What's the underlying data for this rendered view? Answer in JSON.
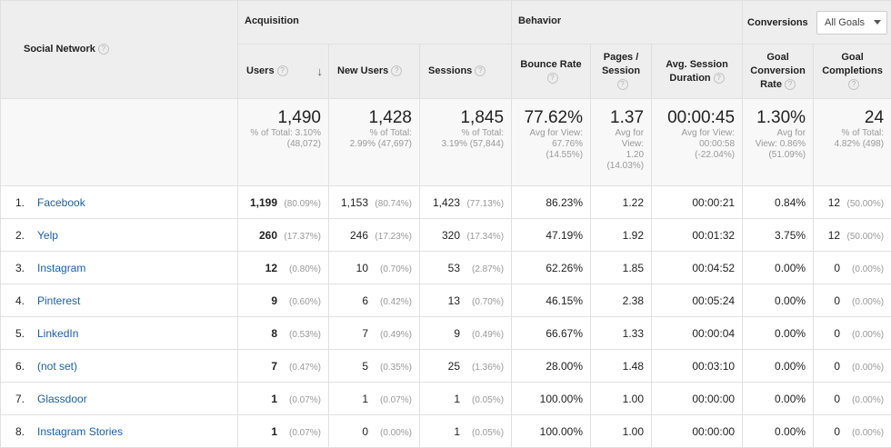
{
  "header": {
    "social_network": "Social Network",
    "groups": {
      "acquisition": "Acquisition",
      "behavior": "Behavior",
      "conversions": "Conversions"
    },
    "goals_select": "All Goals",
    "columns": {
      "users": "Users",
      "new_users": "New Users",
      "sessions": "Sessions",
      "bounce_rate": "Bounce Rate",
      "pages_session_1": "Pages /",
      "pages_session_2": "Session",
      "avg_duration_1": "Avg. Session",
      "avg_duration_2": "Duration",
      "goal_conv_1": "Goal",
      "goal_conv_2": "Conversion",
      "goal_conv_3": "Rate",
      "goal_comp_1": "Goal",
      "goal_comp_2": "Completions"
    },
    "help_glyph": "?",
    "sort_glyph": "↓"
  },
  "totals": {
    "users": {
      "value": "1,490",
      "sub1": "% of Total: 3.10%",
      "sub2": "(48,072)"
    },
    "new_users": {
      "value": "1,428",
      "sub1": "% of Total:",
      "sub2": "2.99% (47,697)"
    },
    "sessions": {
      "value": "1,845",
      "sub1": "% of Total:",
      "sub2": "3.19% (57,844)"
    },
    "bounce_rate": {
      "value": "77.62%",
      "sub1": "Avg for View:",
      "sub2": "67.76%",
      "sub3": "(14.55%)"
    },
    "pages_session": {
      "value": "1.37",
      "sub1": "Avg for",
      "sub2": "View:",
      "sub3": "1.20",
      "sub4": "(14.03%)"
    },
    "avg_duration": {
      "value": "00:00:45",
      "sub1": "Avg for View:",
      "sub2": "00:00:58",
      "sub3": "(-22.04%)"
    },
    "goal_conv": {
      "value": "1.30%",
      "sub1": "Avg for",
      "sub2": "View: 0.86%",
      "sub3": "(51.09%)"
    },
    "goal_comp": {
      "value": "24",
      "sub1": "% of Total:",
      "sub2": "4.82% (498)"
    }
  },
  "rows": [
    {
      "idx": "1.",
      "name": "Facebook",
      "users": "1,199",
      "users_pct": "(80.09%)",
      "new_users": "1,153",
      "new_users_pct": "(80.74%)",
      "sessions": "1,423",
      "sessions_pct": "(77.13%)",
      "bounce": "86.23%",
      "pages": "1.22",
      "duration": "00:00:21",
      "conv": "0.84%",
      "comp": "12",
      "comp_pct": "(50.00%)"
    },
    {
      "idx": "2.",
      "name": "Yelp",
      "users": "260",
      "users_pct": "(17.37%)",
      "new_users": "246",
      "new_users_pct": "(17.23%)",
      "sessions": "320",
      "sessions_pct": "(17.34%)",
      "bounce": "47.19%",
      "pages": "1.92",
      "duration": "00:01:32",
      "conv": "3.75%",
      "comp": "12",
      "comp_pct": "(50.00%)"
    },
    {
      "idx": "3.",
      "name": "Instagram",
      "users": "12",
      "users_pct": "(0.80%)",
      "new_users": "10",
      "new_users_pct": "(0.70%)",
      "sessions": "53",
      "sessions_pct": "(2.87%)",
      "bounce": "62.26%",
      "pages": "1.85",
      "duration": "00:04:52",
      "conv": "0.00%",
      "comp": "0",
      "comp_pct": "(0.00%)"
    },
    {
      "idx": "4.",
      "name": "Pinterest",
      "users": "9",
      "users_pct": "(0.60%)",
      "new_users": "6",
      "new_users_pct": "(0.42%)",
      "sessions": "13",
      "sessions_pct": "(0.70%)",
      "bounce": "46.15%",
      "pages": "2.38",
      "duration": "00:05:24",
      "conv": "0.00%",
      "comp": "0",
      "comp_pct": "(0.00%)"
    },
    {
      "idx": "5.",
      "name": "LinkedIn",
      "users": "8",
      "users_pct": "(0.53%)",
      "new_users": "7",
      "new_users_pct": "(0.49%)",
      "sessions": "9",
      "sessions_pct": "(0.49%)",
      "bounce": "66.67%",
      "pages": "1.33",
      "duration": "00:00:04",
      "conv": "0.00%",
      "comp": "0",
      "comp_pct": "(0.00%)"
    },
    {
      "idx": "6.",
      "name": "(not set)",
      "users": "7",
      "users_pct": "(0.47%)",
      "new_users": "5",
      "new_users_pct": "(0.35%)",
      "sessions": "25",
      "sessions_pct": "(1.36%)",
      "bounce": "28.00%",
      "pages": "1.48",
      "duration": "00:03:10",
      "conv": "0.00%",
      "comp": "0",
      "comp_pct": "(0.00%)"
    },
    {
      "idx": "7.",
      "name": "Glassdoor",
      "users": "1",
      "users_pct": "(0.07%)",
      "new_users": "1",
      "new_users_pct": "(0.07%)",
      "sessions": "1",
      "sessions_pct": "(0.05%)",
      "bounce": "100.00%",
      "pages": "1.00",
      "duration": "00:00:00",
      "conv": "0.00%",
      "comp": "0",
      "comp_pct": "(0.00%)"
    },
    {
      "idx": "8.",
      "name": "Instagram Stories",
      "users": "1",
      "users_pct": "(0.07%)",
      "new_users": "0",
      "new_users_pct": "(0.00%)",
      "sessions": "1",
      "sessions_pct": "(0.05%)",
      "bounce": "100.00%",
      "pages": "1.00",
      "duration": "00:00:00",
      "conv": "0.00%",
      "comp": "0",
      "comp_pct": "(0.00%)"
    }
  ]
}
